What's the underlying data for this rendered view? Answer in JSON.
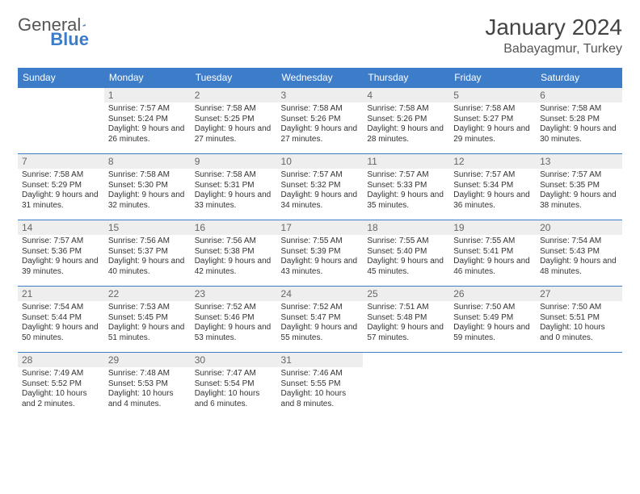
{
  "brand": {
    "part1": "General",
    "part2": "Blue"
  },
  "title": "January 2024",
  "location": "Babayagmur, Turkey",
  "colors": {
    "header_bg": "#3d7cc9",
    "header_text": "#ffffff",
    "daynum_bg": "#eeeeee",
    "border": "#3d7cc9",
    "body_text": "#333333"
  },
  "weekdays": [
    "Sunday",
    "Monday",
    "Tuesday",
    "Wednesday",
    "Thursday",
    "Friday",
    "Saturday"
  ],
  "weeks": [
    [
      null,
      {
        "n": "1",
        "sr": "7:57 AM",
        "ss": "5:24 PM",
        "dl": "9 hours and 26 minutes."
      },
      {
        "n": "2",
        "sr": "7:58 AM",
        "ss": "5:25 PM",
        "dl": "9 hours and 27 minutes."
      },
      {
        "n": "3",
        "sr": "7:58 AM",
        "ss": "5:26 PM",
        "dl": "9 hours and 27 minutes."
      },
      {
        "n": "4",
        "sr": "7:58 AM",
        "ss": "5:26 PM",
        "dl": "9 hours and 28 minutes."
      },
      {
        "n": "5",
        "sr": "7:58 AM",
        "ss": "5:27 PM",
        "dl": "9 hours and 29 minutes."
      },
      {
        "n": "6",
        "sr": "7:58 AM",
        "ss": "5:28 PM",
        "dl": "9 hours and 30 minutes."
      }
    ],
    [
      {
        "n": "7",
        "sr": "7:58 AM",
        "ss": "5:29 PM",
        "dl": "9 hours and 31 minutes."
      },
      {
        "n": "8",
        "sr": "7:58 AM",
        "ss": "5:30 PM",
        "dl": "9 hours and 32 minutes."
      },
      {
        "n": "9",
        "sr": "7:58 AM",
        "ss": "5:31 PM",
        "dl": "9 hours and 33 minutes."
      },
      {
        "n": "10",
        "sr": "7:57 AM",
        "ss": "5:32 PM",
        "dl": "9 hours and 34 minutes."
      },
      {
        "n": "11",
        "sr": "7:57 AM",
        "ss": "5:33 PM",
        "dl": "9 hours and 35 minutes."
      },
      {
        "n": "12",
        "sr": "7:57 AM",
        "ss": "5:34 PM",
        "dl": "9 hours and 36 minutes."
      },
      {
        "n": "13",
        "sr": "7:57 AM",
        "ss": "5:35 PM",
        "dl": "9 hours and 38 minutes."
      }
    ],
    [
      {
        "n": "14",
        "sr": "7:57 AM",
        "ss": "5:36 PM",
        "dl": "9 hours and 39 minutes."
      },
      {
        "n": "15",
        "sr": "7:56 AM",
        "ss": "5:37 PM",
        "dl": "9 hours and 40 minutes."
      },
      {
        "n": "16",
        "sr": "7:56 AM",
        "ss": "5:38 PM",
        "dl": "9 hours and 42 minutes."
      },
      {
        "n": "17",
        "sr": "7:55 AM",
        "ss": "5:39 PM",
        "dl": "9 hours and 43 minutes."
      },
      {
        "n": "18",
        "sr": "7:55 AM",
        "ss": "5:40 PM",
        "dl": "9 hours and 45 minutes."
      },
      {
        "n": "19",
        "sr": "7:55 AM",
        "ss": "5:41 PM",
        "dl": "9 hours and 46 minutes."
      },
      {
        "n": "20",
        "sr": "7:54 AM",
        "ss": "5:43 PM",
        "dl": "9 hours and 48 minutes."
      }
    ],
    [
      {
        "n": "21",
        "sr": "7:54 AM",
        "ss": "5:44 PM",
        "dl": "9 hours and 50 minutes."
      },
      {
        "n": "22",
        "sr": "7:53 AM",
        "ss": "5:45 PM",
        "dl": "9 hours and 51 minutes."
      },
      {
        "n": "23",
        "sr": "7:52 AM",
        "ss": "5:46 PM",
        "dl": "9 hours and 53 minutes."
      },
      {
        "n": "24",
        "sr": "7:52 AM",
        "ss": "5:47 PM",
        "dl": "9 hours and 55 minutes."
      },
      {
        "n": "25",
        "sr": "7:51 AM",
        "ss": "5:48 PM",
        "dl": "9 hours and 57 minutes."
      },
      {
        "n": "26",
        "sr": "7:50 AM",
        "ss": "5:49 PM",
        "dl": "9 hours and 59 minutes."
      },
      {
        "n": "27",
        "sr": "7:50 AM",
        "ss": "5:51 PM",
        "dl": "10 hours and 0 minutes."
      }
    ],
    [
      {
        "n": "28",
        "sr": "7:49 AM",
        "ss": "5:52 PM",
        "dl": "10 hours and 2 minutes."
      },
      {
        "n": "29",
        "sr": "7:48 AM",
        "ss": "5:53 PM",
        "dl": "10 hours and 4 minutes."
      },
      {
        "n": "30",
        "sr": "7:47 AM",
        "ss": "5:54 PM",
        "dl": "10 hours and 6 minutes."
      },
      {
        "n": "31",
        "sr": "7:46 AM",
        "ss": "5:55 PM",
        "dl": "10 hours and 8 minutes."
      },
      null,
      null,
      null
    ]
  ],
  "labels": {
    "sunrise": "Sunrise:",
    "sunset": "Sunset:",
    "daylight": "Daylight:"
  }
}
